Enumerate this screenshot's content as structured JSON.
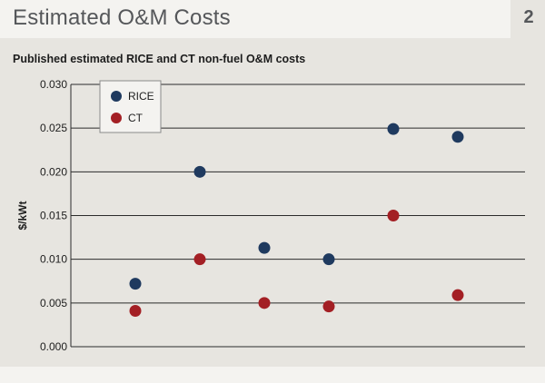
{
  "header": {
    "title": "Estimated O&M Costs",
    "page_number": "2"
  },
  "colors": {
    "background": "#e7e5e0",
    "title_bar": "#f4f3f0",
    "rice": "#1f3a5f",
    "ct": "#a31f24",
    "grid": "#2b2b2b"
  },
  "chart_data": {
    "type": "scatter",
    "title": "Published estimated RICE and CT non-fuel O&M costs",
    "ylabel": "$/kWt",
    "xlabel": "",
    "ylim": [
      0,
      0.03
    ],
    "yticks": [
      "0.000",
      "0.005",
      "0.010",
      "0.015",
      "0.020",
      "0.025",
      "0.030"
    ],
    "x": [
      1,
      2,
      3,
      4,
      5,
      6
    ],
    "series": [
      {
        "name": "RICE",
        "values": [
          0.0072,
          0.02,
          0.0113,
          0.01,
          0.0249,
          0.024
        ]
      },
      {
        "name": "CT",
        "values": [
          0.0041,
          0.01,
          0.005,
          0.0046,
          0.015,
          0.0059
        ]
      }
    ],
    "grid": true,
    "legend_position": "top-left"
  }
}
